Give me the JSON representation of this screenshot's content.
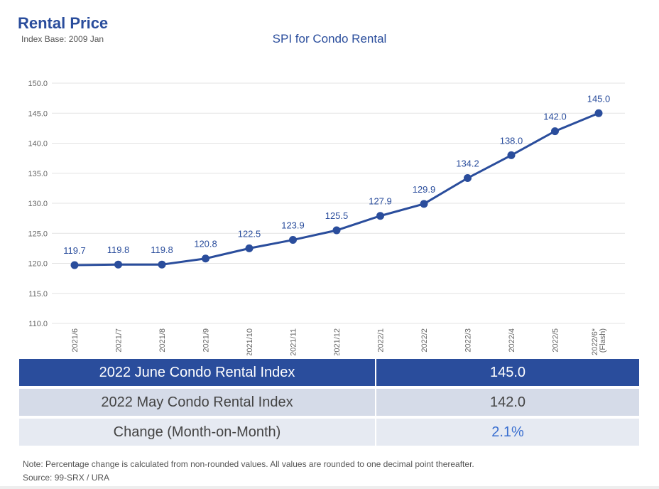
{
  "header": {
    "title": "Rental Price",
    "subtitle": "Index Base: 2009 Jan"
  },
  "chart_data": {
    "type": "line",
    "title": "SPI for Condo Rental",
    "categories": [
      "2021/6",
      "2021/7",
      "2021/8",
      "2021/9",
      "2021/10",
      "2021/11",
      "2021/12",
      "2022/1",
      "2022/2",
      "2022/3",
      "2022/4",
      "2022/5",
      "2022/6* (Flash)"
    ],
    "values": [
      119.7,
      119.8,
      119.8,
      120.8,
      122.5,
      123.9,
      125.5,
      127.9,
      129.9,
      134.2,
      138.0,
      142.0,
      145.0
    ],
    "ylim": [
      110,
      150
    ],
    "yticks": [
      "110.0",
      "115.0",
      "120.0",
      "125.0",
      "130.0",
      "135.0",
      "140.0",
      "145.0",
      "150.0"
    ],
    "grid": true,
    "color": "#2a4d9c"
  },
  "table": {
    "rows": [
      {
        "label": "2022 June Condo Rental Index",
        "value": "145.0"
      },
      {
        "label": "2022 May Condo Rental Index",
        "value": "142.0"
      },
      {
        "label": "Change (Month-on-Month)",
        "value": "2.1%",
        "color": "#3a6fd0"
      }
    ]
  },
  "note": "Note: Percentage change is calculated from non-rounded values.  All values are rounded to one decimal point thereafter.",
  "source": "Source: 99-SRX / URA"
}
